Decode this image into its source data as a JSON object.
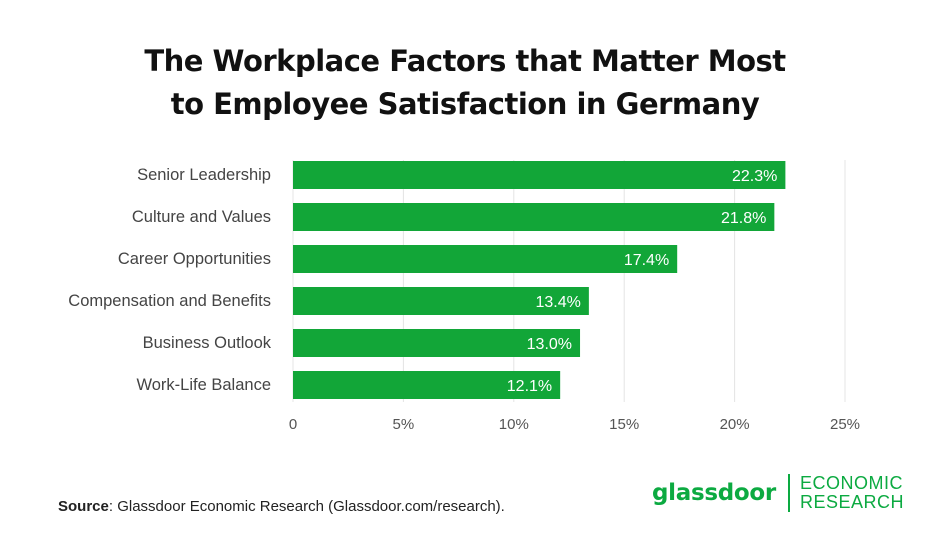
{
  "title_line1": "The Workplace Factors that Matter Most",
  "title_line2": "to Employee Satisfaction in Germany",
  "source_label": "Source",
  "source_text": ": Glassdoor Economic Research (Glassdoor.com/research).",
  "logo": {
    "wordmark": "glassdoor",
    "sub_line1": "ECONOMIC",
    "sub_line2": "RESEARCH"
  },
  "colors": {
    "bar": "#12a638",
    "brand": "#0caa41",
    "grid": "#e4e4e4"
  },
  "chart_data": {
    "type": "bar",
    "orientation": "horizontal",
    "title": "The Workplace Factors that Matter Most to Employee Satisfaction in Germany",
    "categories": [
      "Senior Leadership",
      "Culture and Values",
      "Career Opportunities",
      "Compensation and Benefits",
      "Business Outlook",
      "Work-Life Balance"
    ],
    "values": [
      22.3,
      21.8,
      17.4,
      13.4,
      13.0,
      12.1
    ],
    "value_labels": [
      "22.3%",
      "21.8%",
      "17.4%",
      "13.4%",
      "13.0%",
      "12.1%"
    ],
    "xlim": [
      0,
      25
    ],
    "x_ticks": [
      0,
      5,
      10,
      15,
      20,
      25
    ],
    "x_tick_labels": [
      "0",
      "5%",
      "10%",
      "15%",
      "20%",
      "25%"
    ],
    "grid": "vertical",
    "legend": "none"
  }
}
